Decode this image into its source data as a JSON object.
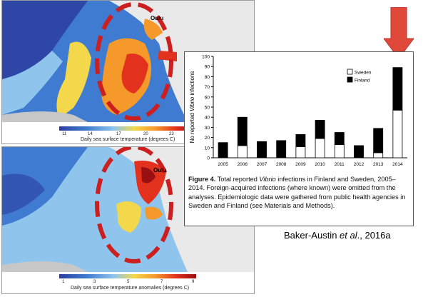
{
  "maps": {
    "top": {
      "city_label": "Oulu",
      "colorbar_ticks": [
        "11",
        "14",
        "17",
        "20",
        "23"
      ],
      "colorbar_label": "Daily sea surface temperature (degrees C)",
      "colors": [
        "#2c3ea0",
        "#3f7bd0",
        "#8fc4ec",
        "#f2d84a",
        "#f59a2a",
        "#e2321d",
        "#9a0f12"
      ]
    },
    "bottom": {
      "city_label": "Oulu",
      "colorbar_ticks": [
        "1",
        "3",
        "5",
        "7",
        "9"
      ],
      "colorbar_label": "Daily sea surface temperature anomalies (degrees C)",
      "colors": [
        "#2c3ea0",
        "#3f7bd0",
        "#8fc4ec",
        "#f2d84a",
        "#f59a2a",
        "#e2321d",
        "#9a0f12"
      ]
    }
  },
  "highlight_color": "#cc1f1f",
  "arrow_color": "#e0483a",
  "chart_data": {
    "type": "bar",
    "stacked": true,
    "categories": [
      "2005",
      "2006",
      "2007",
      "2008",
      "2009",
      "2010",
      "2011",
      "2012",
      "2013",
      "2014"
    ],
    "series": [
      {
        "name": "Sweden",
        "color": "#ffffff",
        "values": [
          0,
          12,
          0,
          0,
          11,
          19,
          13,
          0,
          5,
          47
        ]
      },
      {
        "name": "Finland",
        "color": "#000000",
        "values": [
          15,
          28,
          16,
          17,
          12,
          18,
          12,
          12,
          24,
          42
        ]
      }
    ],
    "ylabel_prefix": "No reported ",
    "ylabel_italic": "Vibrio",
    "ylabel_suffix": " infections",
    "yticks": [
      "0",
      "10",
      "20",
      "30",
      "40",
      "50",
      "60",
      "70",
      "80",
      "90",
      "100"
    ],
    "ylim": [
      0,
      100
    ],
    "legend_position": "top-right",
    "grid": false
  },
  "caption": {
    "label": "Figure 4.",
    "text_a": " Total reported ",
    "italic": "Vibrio",
    "text_b": " infections in Finland and Sweden, 2005–2014. Foreign-acquired infections (where known) were omitted from the analyses. Epidemiologic data were gathered from public health agencies in Sweden and Finland (see Materials and Methods)."
  },
  "citation": {
    "author": "Baker-Austin ",
    "etal": "et al",
    "rest": "., 2016a"
  }
}
